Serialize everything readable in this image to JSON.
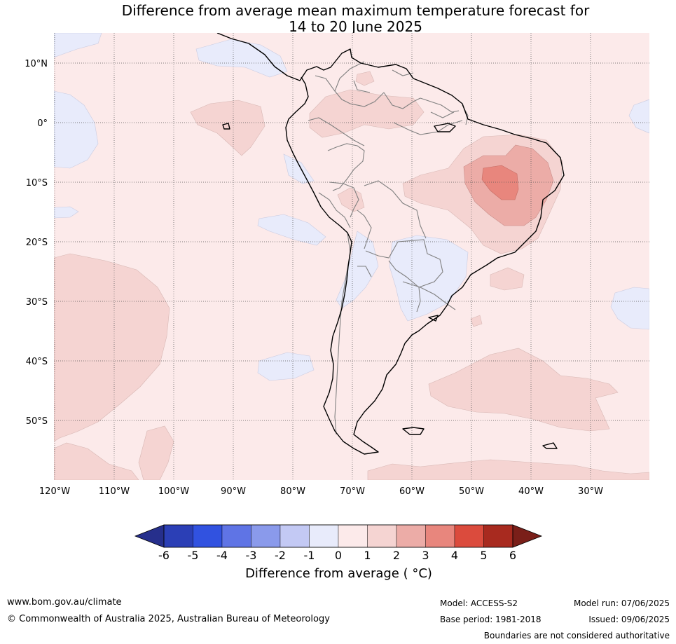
{
  "title": {
    "line1": "Difference from average mean maximum temperature forecast for",
    "line2": "14 to 20 June 2025"
  },
  "axes": {
    "lat_labels": [
      "10°N",
      "0°",
      "10°S",
      "20°S",
      "30°S",
      "40°S",
      "50°S"
    ],
    "lon_labels": [
      "120°W",
      "110°W",
      "100°W",
      "90°W",
      "80°W",
      "70°W",
      "60°W",
      "50°W",
      "40°W",
      "30°W"
    ]
  },
  "colorbar": {
    "ticks": [
      "-6",
      "-5",
      "-4",
      "-3",
      "-2",
      "-1",
      "0",
      "1",
      "2",
      "3",
      "4",
      "5",
      "6"
    ],
    "colors": [
      "#262f8c",
      "#2b3fb6",
      "#3152e0",
      "#5f74e5",
      "#8a9aeb",
      "#c3c9f4",
      "#e8ebfb",
      "#fceaea",
      "#f5d4d2",
      "#ecaca7",
      "#e8867d",
      "#db4b3d",
      "#a82a1f",
      "#7a1f19"
    ],
    "label": "Difference from average ( °C)"
  },
  "footer": {
    "url": "www.bom.gov.au/climate",
    "copyright": "© Commonwealth of Australia 2025, Australian Bureau of Meteorology",
    "model": "Model: ACCESS-S2",
    "base_period": "Base period: 1981-2018",
    "model_run": "Model run: 07/06/2025",
    "issued": "Issued: 09/06/2025",
    "disclaimer": "Boundaries are not considered authoritative"
  }
}
